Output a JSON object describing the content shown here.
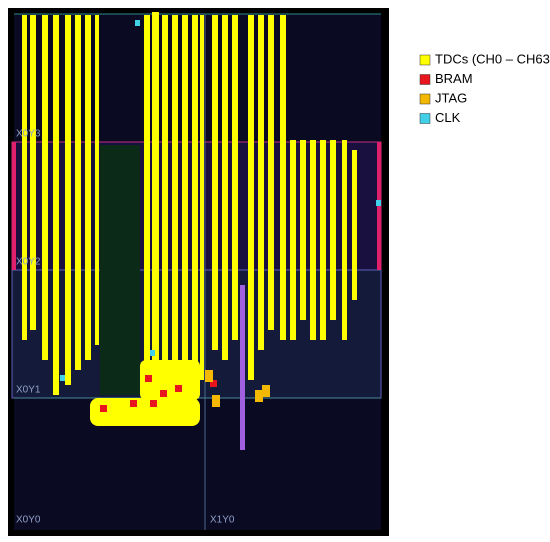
{
  "legend": [
    {
      "label": "TDCs (CH0 – CH63)",
      "color": "#ffff00"
    },
    {
      "label": "BRAM",
      "color": "#e8141e"
    },
    {
      "label": "JTAG",
      "color": "#f5b800"
    },
    {
      "label": "CLK",
      "color": "#40d0e8"
    }
  ],
  "regions": [
    "X0Y3",
    "X0Y2",
    "X0Y1",
    "X0Y0",
    "X1Y0"
  ]
}
